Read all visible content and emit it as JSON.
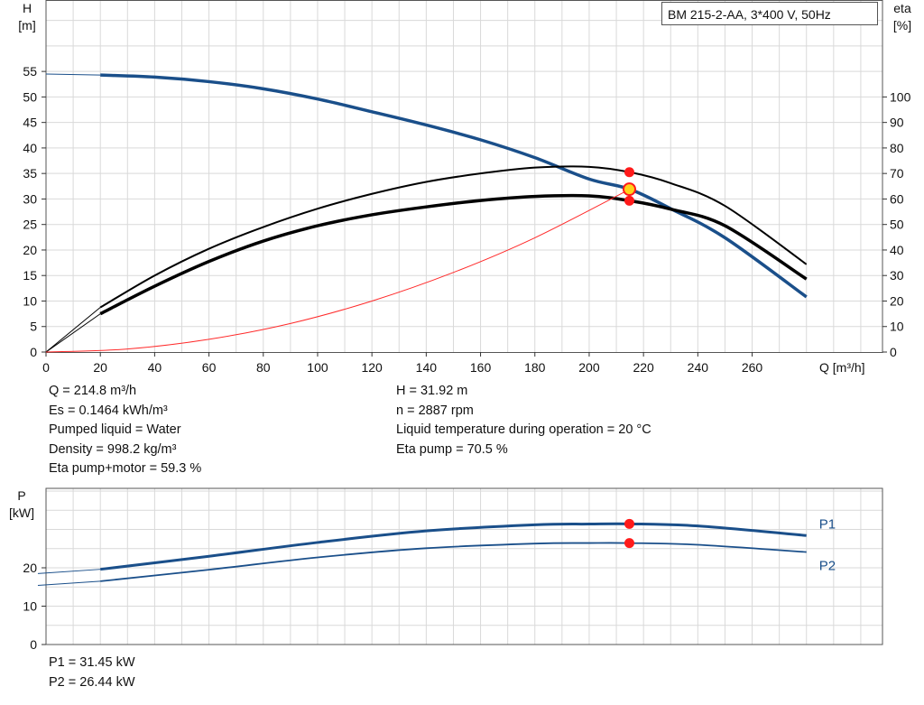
{
  "title": "BM 215-2-AA, 3*400 V, 50Hz",
  "info_left": [
    "Q = 214.8 m³/h",
    "Es = 0.1464 kWh/m³",
    "Pumped liquid = Water",
    "Density = 998.2 kg/m³",
    "Eta pump+motor = 59.3 %"
  ],
  "info_right": [
    "H = 31.92 m",
    "n = 2887 rpm",
    "Liquid temperature during operation = 20 °C",
    "Eta pump = 70.5 %"
  ],
  "info_power": [
    "P1 = 31.45 kW",
    "P2 = 26.44 kW"
  ],
  "colors": {
    "head_curve": "#1a4f8a",
    "eta_curves": "#000000",
    "system_curve": "#ff2a2a",
    "duty_point": "#ff1a1a",
    "duty_point_head": "#ffd21a",
    "power_curves": "#1a4f8a",
    "grid": "#d9d9d9"
  },
  "chart_data": [
    {
      "type": "line",
      "name": "head-efficiency",
      "xlabel": "Q [m³/h]",
      "ylabel": "H\n[m]",
      "y2label": "eta\n[%]",
      "xlim": [
        0,
        308
      ],
      "ylim": [
        0,
        69
      ],
      "y2lim": [
        0,
        138
      ],
      "xticks": [
        0,
        20,
        40,
        60,
        80,
        100,
        120,
        140,
        160,
        180,
        200,
        220,
        240,
        260
      ],
      "yticks": [
        0,
        5,
        10,
        15,
        20,
        25,
        30,
        35,
        40,
        45,
        50,
        55
      ],
      "y2ticks": [
        0,
        10,
        20,
        30,
        40,
        50,
        60,
        70,
        80,
        90,
        100
      ],
      "grid": true,
      "series": [
        {
          "key": "head",
          "axis": "left",
          "stroke_width": 3.5,
          "x": [
            20,
            40,
            60,
            80,
            100,
            120,
            140,
            160,
            180,
            200,
            215,
            230,
            250,
            280
          ],
          "y": [
            54.3,
            53.9,
            53.0,
            51.6,
            49.6,
            47.1,
            44.5,
            41.6,
            38.1,
            33.9,
            31.9,
            28.1,
            22.4,
            10.8
          ]
        },
        {
          "key": "head-ext",
          "axis": "left",
          "stroke_width": 1,
          "x": [
            0,
            20
          ],
          "y": [
            54.5,
            54.3
          ]
        },
        {
          "key": "eta-pump",
          "axis": "right",
          "stroke_width": 2,
          "x": [
            20,
            40,
            60,
            80,
            100,
            120,
            140,
            160,
            180,
            200,
            215,
            230,
            250,
            280
          ],
          "y": [
            17.5,
            30.0,
            40.5,
            49.0,
            56.2,
            62.0,
            66.7,
            70.0,
            72.3,
            72.6,
            70.5,
            66.2,
            57.3,
            34.4
          ]
        },
        {
          "key": "eta-pump-ext",
          "axis": "right",
          "stroke_width": 1,
          "x": [
            0,
            20
          ],
          "y": [
            0,
            17.5
          ]
        },
        {
          "key": "eta-total",
          "axis": "right",
          "stroke_width": 3.5,
          "x": [
            20,
            40,
            60,
            80,
            100,
            120,
            140,
            160,
            180,
            200,
            215,
            230,
            250,
            280
          ],
          "y": [
            15.0,
            25.8,
            35.5,
            43.5,
            49.5,
            53.8,
            56.9,
            59.4,
            61.0,
            61.2,
            59.3,
            56.0,
            49.5,
            28.6
          ]
        },
        {
          "key": "eta-total-ext",
          "axis": "right",
          "stroke_width": 1,
          "x": [
            0,
            20
          ],
          "y": [
            0,
            15.0
          ]
        },
        {
          "key": "system",
          "axis": "left",
          "stroke_width": 1,
          "x": [
            0,
            30,
            60,
            90,
            120,
            150,
            180,
            215
          ],
          "y": [
            0,
            0.6,
            2.5,
            5.6,
            10.0,
            15.6,
            22.4,
            31.92
          ]
        }
      ],
      "points": [
        {
          "key": "duty-head",
          "axis": "left",
          "x": 214.8,
          "y": 31.92
        },
        {
          "key": "duty-eta-pump",
          "axis": "right",
          "x": 214.8,
          "y": 70.5
        },
        {
          "key": "duty-eta-total",
          "axis": "right",
          "x": 214.8,
          "y": 59.3
        }
      ]
    },
    {
      "type": "line",
      "name": "power",
      "ylabel": "P\n[kW]",
      "xlim": [
        0,
        308
      ],
      "ylim": [
        0,
        40.7
      ],
      "yticks": [
        0,
        10,
        20
      ],
      "grid": true,
      "series": [
        {
          "key": "P1",
          "name": "P1",
          "stroke_width": 3,
          "x": [
            20,
            60,
            100,
            140,
            180,
            200,
            215,
            240,
            280
          ],
          "y": [
            19.6,
            23.0,
            26.6,
            29.6,
            31.2,
            31.4,
            31.45,
            30.9,
            28.4
          ]
        },
        {
          "key": "P1-ext",
          "stroke_width": 1,
          "x": [
            -3,
            20
          ],
          "y": [
            18.5,
            19.6
          ]
        },
        {
          "key": "P2",
          "name": "P2",
          "stroke_width": 1.8,
          "x": [
            20,
            60,
            100,
            140,
            180,
            200,
            215,
            240,
            280
          ],
          "y": [
            16.5,
            19.5,
            22.7,
            25.1,
            26.3,
            26.45,
            26.44,
            26.0,
            24.1
          ]
        },
        {
          "key": "P2-ext",
          "stroke_width": 1,
          "x": [
            -3,
            20
          ],
          "y": [
            15.4,
            16.5
          ]
        }
      ],
      "points": [
        {
          "key": "duty-P1",
          "x": 214.8,
          "y": 31.45
        },
        {
          "key": "duty-P2",
          "x": 214.8,
          "y": 26.44
        }
      ]
    }
  ]
}
